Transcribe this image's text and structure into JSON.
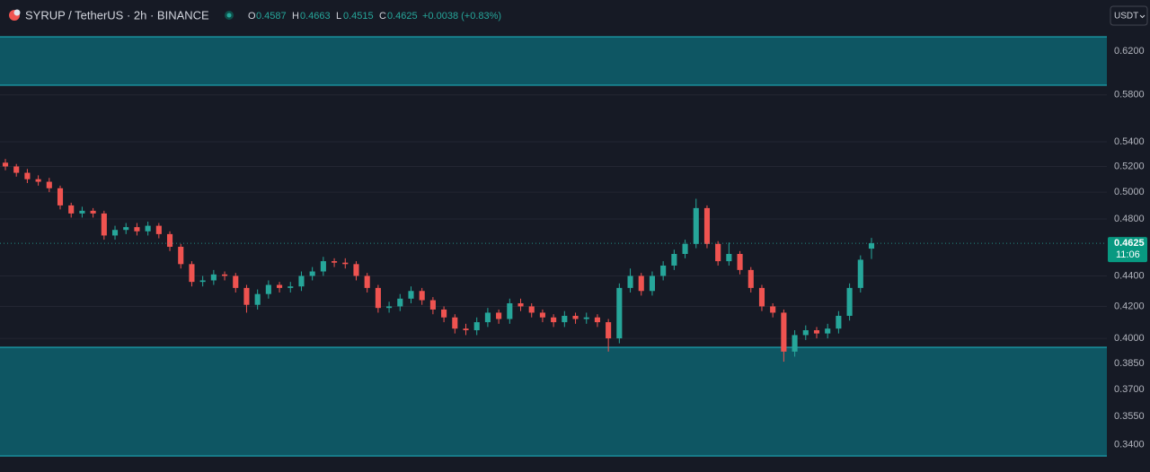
{
  "chart_data": {
    "type": "candlestick",
    "symbol": "SYRUP / TetherUS · 2h · BINANCE",
    "header_labels": {
      "open": "O",
      "high": "H",
      "low": "L",
      "close": "C"
    },
    "change": "+0.0038 (+0.83%)",
    "currency": "USDT",
    "countdown": "11:06",
    "log": true,
    "grid": true,
    "up_color": "#26a69a",
    "down_color": "#ef5350",
    "zone_color": "#0e5a66",
    "zone_border": "#1fb8c4",
    "ylim": [
      0.3262,
      0.6704
    ],
    "yticks": [
      {
        "value": 0.62,
        "label": "0.6200"
      },
      {
        "value": 0.58,
        "label": "0.5800"
      },
      {
        "value": 0.54,
        "label": "0.5400"
      },
      {
        "value": 0.52,
        "label": "0.5200"
      },
      {
        "value": 0.5,
        "label": "0.5000"
      },
      {
        "value": 0.48,
        "label": "0.4800"
      },
      {
        "value": 0.44,
        "label": "0.4400"
      },
      {
        "value": 0.42,
        "label": "0.4200"
      },
      {
        "value": 0.4,
        "label": "0.4000"
      },
      {
        "value": 0.385,
        "label": "0.3850"
      },
      {
        "value": 0.37,
        "label": "0.3700"
      },
      {
        "value": 0.355,
        "label": "0.3550"
      },
      {
        "value": 0.34,
        "label": "0.3400"
      }
    ],
    "zones": [
      {
        "top": 0.6338,
        "bottom": 0.5886
      },
      {
        "top": 0.3946,
        "bottom": 0.3343
      }
    ],
    "candles": [
      [
        0.523,
        0.526,
        0.517,
        0.52
      ],
      [
        0.52,
        0.522,
        0.512,
        0.515
      ],
      [
        0.515,
        0.518,
        0.507,
        0.51
      ],
      [
        0.51,
        0.513,
        0.505,
        0.508
      ],
      [
        0.508,
        0.511,
        0.5,
        0.503
      ],
      [
        0.503,
        0.505,
        0.487,
        0.49
      ],
      [
        0.49,
        0.492,
        0.481,
        0.484
      ],
      [
        0.484,
        0.489,
        0.481,
        0.486
      ],
      [
        0.486,
        0.488,
        0.481,
        0.484
      ],
      [
        0.484,
        0.486,
        0.465,
        0.468
      ],
      [
        0.468,
        0.475,
        0.465,
        0.472
      ],
      [
        0.472,
        0.477,
        0.469,
        0.474
      ],
      [
        0.474,
        0.477,
        0.468,
        0.471
      ],
      [
        0.471,
        0.478,
        0.468,
        0.475
      ],
      [
        0.475,
        0.477,
        0.466,
        0.469
      ],
      [
        0.469,
        0.471,
        0.457,
        0.46
      ],
      [
        0.46,
        0.462,
        0.445,
        0.448
      ],
      [
        0.448,
        0.45,
        0.433,
        0.436
      ],
      [
        0.436,
        0.44,
        0.433,
        0.437
      ],
      [
        0.437,
        0.444,
        0.434,
        0.441
      ],
      [
        0.441,
        0.443,
        0.437,
        0.44
      ],
      [
        0.44,
        0.442,
        0.429,
        0.432
      ],
      [
        0.432,
        0.434,
        0.416,
        0.421
      ],
      [
        0.421,
        0.431,
        0.418,
        0.428
      ],
      [
        0.428,
        0.437,
        0.425,
        0.434
      ],
      [
        0.434,
        0.436,
        0.429,
        0.432
      ],
      [
        0.432,
        0.436,
        0.429,
        0.433
      ],
      [
        0.433,
        0.443,
        0.43,
        0.44
      ],
      [
        0.44,
        0.446,
        0.437,
        0.443
      ],
      [
        0.443,
        0.453,
        0.44,
        0.45
      ],
      [
        0.45,
        0.452,
        0.446,
        0.449
      ],
      [
        0.449,
        0.452,
        0.445,
        0.448
      ],
      [
        0.448,
        0.45,
        0.437,
        0.44
      ],
      [
        0.44,
        0.442,
        0.429,
        0.432
      ],
      [
        0.432,
        0.434,
        0.416,
        0.419
      ],
      [
        0.419,
        0.423,
        0.416,
        0.42
      ],
      [
        0.42,
        0.428,
        0.417,
        0.425
      ],
      [
        0.425,
        0.433,
        0.422,
        0.43
      ],
      [
        0.43,
        0.432,
        0.421,
        0.424
      ],
      [
        0.424,
        0.426,
        0.415,
        0.418
      ],
      [
        0.418,
        0.42,
        0.41,
        0.413
      ],
      [
        0.413,
        0.415,
        0.403,
        0.406
      ],
      [
        0.406,
        0.409,
        0.402,
        0.405
      ],
      [
        0.405,
        0.413,
        0.402,
        0.41
      ],
      [
        0.41,
        0.419,
        0.407,
        0.416
      ],
      [
        0.416,
        0.418,
        0.409,
        0.412
      ],
      [
        0.412,
        0.425,
        0.409,
        0.422
      ],
      [
        0.422,
        0.425,
        0.417,
        0.42
      ],
      [
        0.42,
        0.422,
        0.413,
        0.416
      ],
      [
        0.416,
        0.418,
        0.41,
        0.413
      ],
      [
        0.413,
        0.415,
        0.407,
        0.41
      ],
      [
        0.41,
        0.417,
        0.407,
        0.414
      ],
      [
        0.414,
        0.416,
        0.409,
        0.412
      ],
      [
        0.412,
        0.416,
        0.409,
        0.413
      ],
      [
        0.413,
        0.415,
        0.407,
        0.41
      ],
      [
        0.41,
        0.412,
        0.392,
        0.4
      ],
      [
        0.4,
        0.435,
        0.397,
        0.432
      ],
      [
        0.432,
        0.445,
        0.429,
        0.44
      ],
      [
        0.44,
        0.442,
        0.427,
        0.43
      ],
      [
        0.43,
        0.443,
        0.427,
        0.44
      ],
      [
        0.44,
        0.45,
        0.437,
        0.447
      ],
      [
        0.447,
        0.458,
        0.444,
        0.455
      ],
      [
        0.455,
        0.465,
        0.452,
        0.462
      ],
      [
        0.462,
        0.495,
        0.459,
        0.488
      ],
      [
        0.488,
        0.49,
        0.459,
        0.462
      ],
      [
        0.462,
        0.464,
        0.447,
        0.45
      ],
      [
        0.45,
        0.463,
        0.447,
        0.455
      ],
      [
        0.455,
        0.457,
        0.441,
        0.444
      ],
      [
        0.444,
        0.446,
        0.429,
        0.432
      ],
      [
        0.432,
        0.434,
        0.417,
        0.42
      ],
      [
        0.42,
        0.422,
        0.413,
        0.416
      ],
      [
        0.416,
        0.418,
        0.386,
        0.392
      ],
      [
        0.392,
        0.405,
        0.389,
        0.402
      ],
      [
        0.402,
        0.408,
        0.399,
        0.405
      ],
      [
        0.405,
        0.407,
        0.4,
        0.403
      ],
      [
        0.403,
        0.409,
        0.4,
        0.406
      ],
      [
        0.406,
        0.417,
        0.403,
        0.414
      ],
      [
        0.414,
        0.435,
        0.411,
        0.432
      ],
      [
        0.432,
        0.454,
        0.429,
        0.451
      ],
      [
        0.4587,
        0.4663,
        0.4515,
        0.4625
      ]
    ]
  }
}
